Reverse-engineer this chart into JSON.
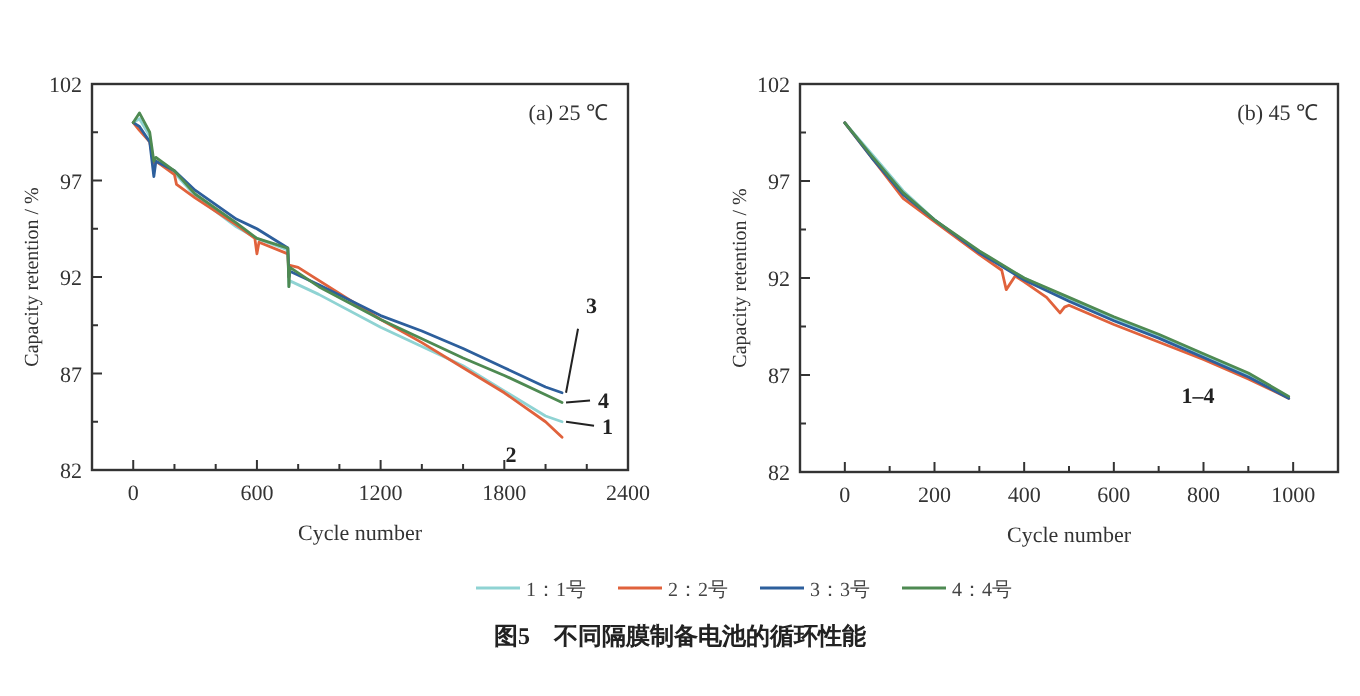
{
  "chart_data": [
    {
      "type": "line",
      "xlabel": "Cycle number",
      "ylabel": "Capacity retention / %",
      "xlim": [
        -200,
        2400
      ],
      "ylim": [
        82,
        102
      ],
      "xticks": [
        {
          "value": -200,
          "label": null
        },
        0,
        {
          "value": 200,
          "label": null
        },
        {
          "value": 400,
          "label": null
        },
        600,
        {
          "value": 800,
          "label": null
        },
        {
          "value": 1000,
          "label": null
        },
        1200,
        {
          "value": 1400,
          "label": null
        },
        {
          "value": 1600,
          "label": null
        },
        1800,
        {
          "value": 2000,
          "label": null
        },
        {
          "value": 2200,
          "label": null
        },
        2400
      ],
      "yticks": [
        82,
        {
          "value": 84.5,
          "label": null
        },
        87,
        {
          "value": 89.5,
          "label": null
        },
        92,
        {
          "value": 94.5,
          "label": null
        },
        97,
        {
          "value": 99.5,
          "label": null
        },
        102
      ],
      "legend": "bottom",
      "series": [
        {
          "name": "1：1号",
          "color": "#8fd3d3",
          "x": [
            0,
            30,
            80,
            100,
            110,
            200,
            300,
            500,
            600,
            750,
            755,
            760,
            900,
            1200,
            1400,
            1600,
            1800,
            2000,
            2080
          ],
          "values": [
            100,
            100.2,
            99.3,
            97.8,
            98,
            97.4,
            96.2,
            94.6,
            94,
            93.4,
            91.5,
            91.8,
            91.1,
            89.4,
            88.4,
            87.4,
            86.1,
            84.8,
            84.5
          ]
        },
        {
          "name": "2：2号",
          "color": "#e0623c",
          "x": [
            0,
            30,
            80,
            100,
            110,
            200,
            210,
            300,
            500,
            590,
            600,
            610,
            750,
            755,
            760,
            800,
            1200,
            1400,
            1600,
            1800,
            2000,
            2080
          ],
          "values": [
            100,
            99.6,
            99,
            97.9,
            98,
            97.3,
            96.8,
            96.1,
            94.7,
            94,
            93.2,
            93.8,
            93.2,
            92,
            92.6,
            92.5,
            89.8,
            88.6,
            87.3,
            86,
            84.5,
            83.7
          ]
        },
        {
          "name": "3：3号",
          "color": "#2d5f9c",
          "x": [
            0,
            30,
            80,
            100,
            110,
            200,
            300,
            500,
            600,
            750,
            755,
            760,
            900,
            1200,
            1400,
            1600,
            1800,
            2000,
            2080
          ],
          "values": [
            100,
            99.8,
            99,
            97.2,
            98,
            97.5,
            96.5,
            95,
            94.5,
            93.5,
            92,
            92.3,
            91.6,
            90,
            89.2,
            88.3,
            87.3,
            86.3,
            86
          ]
        },
        {
          "name": "4：4号",
          "color": "#4e8a52",
          "x": [
            0,
            30,
            80,
            100,
            110,
            200,
            300,
            500,
            600,
            750,
            755,
            760,
            900,
            1200,
            1400,
            1600,
            1800,
            2000,
            2080
          ],
          "values": [
            100,
            100.5,
            99.5,
            98,
            98.2,
            97.5,
            96.3,
            94.8,
            94,
            93.5,
            91.5,
            92.5,
            91.5,
            89.8,
            88.8,
            87.8,
            86.9,
            85.9,
            85.5
          ]
        }
      ],
      "annotations": [
        "(a) 25 ℃",
        {
          "text": "1",
          "x": 2080,
          "y": 84.5
        },
        {
          "text": "2",
          "x": 2000,
          "y": 84.3
        },
        {
          "text": "3",
          "x": 2080,
          "y": 86
        },
        {
          "text": "4",
          "x": 2080,
          "y": 85.5
        },
        "图5　不同隔膜制备电池的循环性能"
      ]
    },
    {
      "type": "line",
      "xlabel": "Cycle number",
      "ylabel": "Capacity retention / %",
      "xlim": [
        -100,
        1100
      ],
      "ylim": [
        82,
        102
      ],
      "xticks": [
        {
          "value": -100,
          "label": null
        },
        0,
        {
          "value": 100,
          "label": null
        },
        200,
        {
          "value": 300,
          "label": null
        },
        400,
        {
          "value": 500,
          "label": null
        },
        600,
        {
          "value": 700,
          "label": null
        },
        800,
        {
          "value": 900,
          "label": null
        },
        1000,
        {
          "value": 1100,
          "label": null
        }
      ],
      "yticks": [
        82,
        {
          "value": 84.5,
          "label": null
        },
        87,
        {
          "value": 89.5,
          "label": null
        },
        92,
        {
          "value": 94.5,
          "label": null
        },
        97,
        {
          "value": 99.5,
          "label": null
        },
        102
      ],
      "series": [
        {
          "color": "#8fd3d3",
          "x": [
            0,
            60,
            130,
            200,
            300,
            400,
            500,
            600,
            700,
            800,
            900,
            990
          ],
          "values": [
            100,
            98.4,
            96.5,
            95,
            93.3,
            92,
            90.9,
            89.9,
            89,
            88,
            87,
            85.8
          ]
        },
        {
          "color": "#e0623c",
          "x": [
            0,
            60,
            130,
            200,
            300,
            350,
            360,
            380,
            400,
            450,
            480,
            490,
            500,
            600,
            700,
            800,
            900,
            990
          ],
          "values": [
            100,
            98.2,
            96.1,
            94.9,
            93.2,
            92.4,
            91.4,
            92.1,
            91.8,
            91,
            90.2,
            90.5,
            90.6,
            89.6,
            88.7,
            87.8,
            86.8,
            85.8
          ]
        },
        {
          "color": "#2d5f9c",
          "x": [
            0,
            60,
            130,
            200,
            300,
            400,
            500,
            600,
            700,
            800,
            900,
            990
          ],
          "values": [
            100,
            98.2,
            96.3,
            95,
            93.3,
            91.9,
            90.8,
            89.8,
            88.9,
            87.9,
            86.9,
            85.8
          ]
        },
        {
          "color": "#4e8a52",
          "x": [
            0,
            60,
            130,
            200,
            300,
            400,
            500,
            600,
            700,
            800,
            900,
            990
          ],
          "values": [
            100,
            98.3,
            96.4,
            95,
            93.4,
            92,
            91,
            90,
            89.1,
            88.1,
            87.1,
            85.9
          ]
        }
      ],
      "annotations": [
        "(b) 45 ℃",
        {
          "text": "1–4",
          "x": 840,
          "y": 86.8
        }
      ]
    }
  ]
}
